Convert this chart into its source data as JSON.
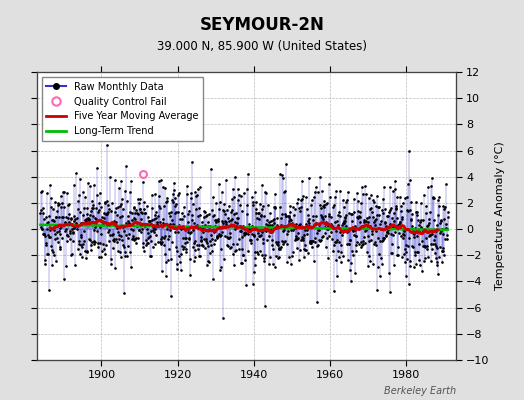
{
  "title": "SEYMOUR-2N",
  "subtitle": "39.000 N, 85.900 W (United States)",
  "ylabel": "Temperature Anomaly (°C)",
  "credit": "Berkeley Earth",
  "xlim": [
    1883,
    1993
  ],
  "ylim": [
    -10,
    12
  ],
  "yticks": [
    -10,
    -8,
    -6,
    -4,
    -2,
    0,
    2,
    4,
    6,
    8,
    10,
    12
  ],
  "xticks": [
    1900,
    1920,
    1940,
    1960,
    1980
  ],
  "bg_color": "#e0e0e0",
  "plot_bg_color": "#ffffff",
  "raw_color": "#3333cc",
  "ma_color": "#cc0000",
  "trend_color": "#00bb00",
  "qc_color": "#ff69b4",
  "seed": 42,
  "n_years": 107,
  "start_year": 1884
}
